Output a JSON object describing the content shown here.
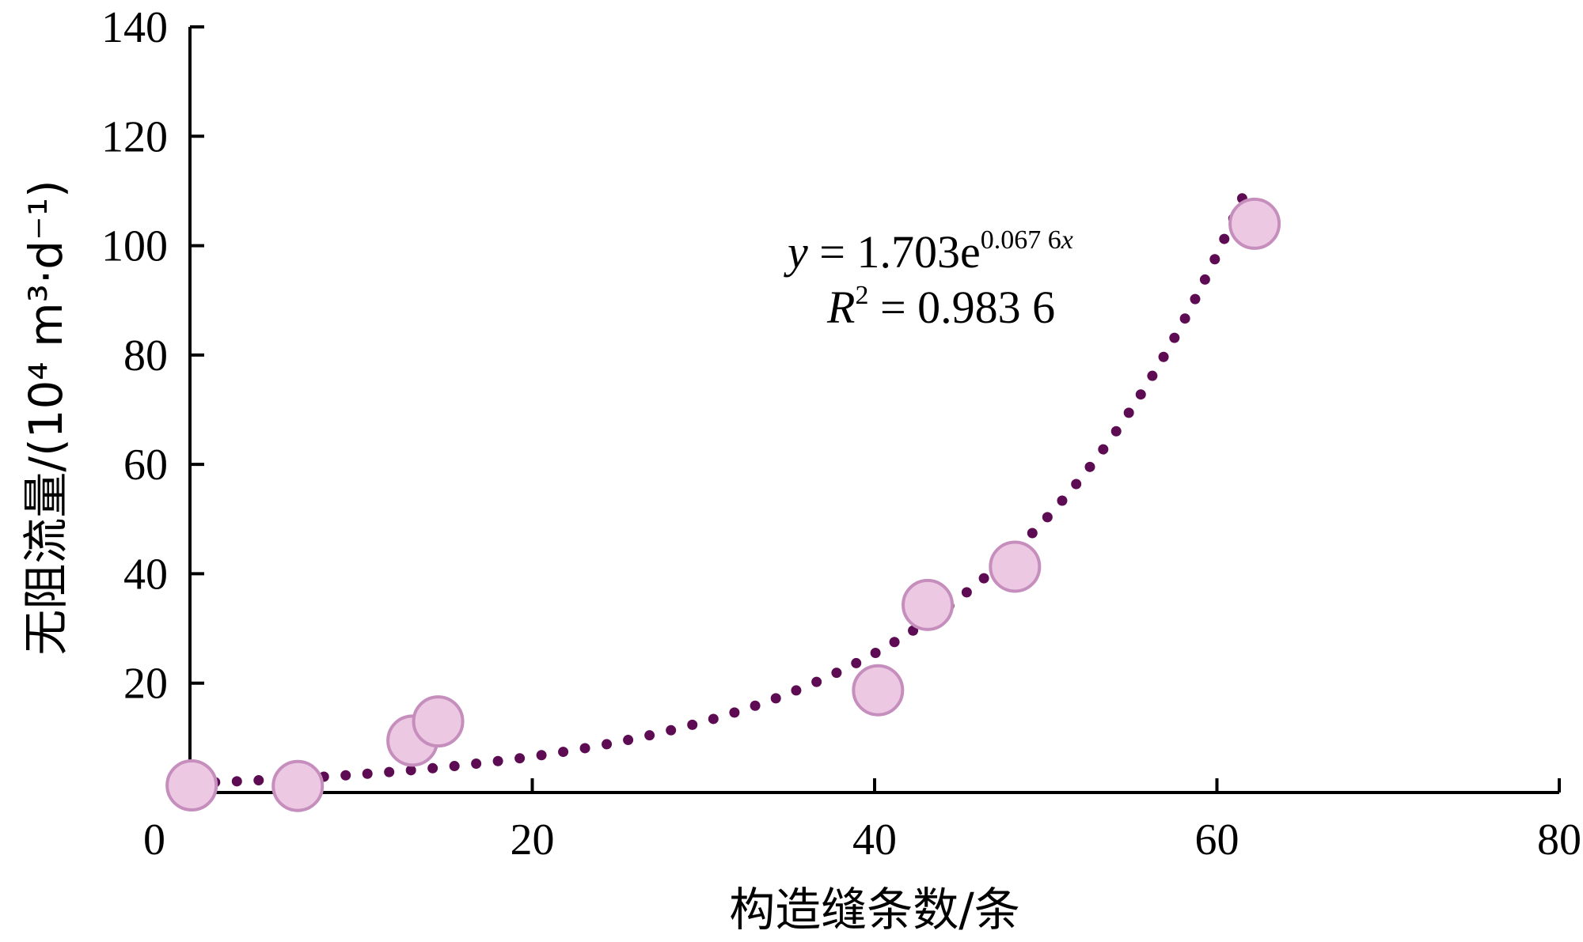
{
  "chart_data": {
    "type": "scatter",
    "title": "",
    "xlabel": "构造缝条数/条",
    "ylabel": "无阻流量/(10⁴ m³·d⁻¹)",
    "xlim": [
      0,
      80
    ],
    "ylim": [
      0,
      140
    ],
    "x_ticks": [
      "0",
      "20",
      "40",
      "60",
      "80"
    ],
    "y_ticks": [
      "20",
      "40",
      "60",
      "80",
      "100",
      "120",
      "140"
    ],
    "grid": false,
    "legend": "none",
    "series": [
      {
        "points": [
          {
            "x": 0.1,
            "y": 1.3
          },
          {
            "x": 6.3,
            "y": 1.2
          },
          {
            "x": 13,
            "y": 9.5
          },
          {
            "x": 14.5,
            "y": 13
          },
          {
            "x": 40.2,
            "y": 18.7
          },
          {
            "x": 43.1,
            "y": 34.3
          },
          {
            "x": 48.2,
            "y": 41.3
          },
          {
            "x": 62.2,
            "y": 104
          }
        ]
      }
    ],
    "trendline": {
      "type": "exponential",
      "a": 1.703,
      "b": 0.0676,
      "x_range": [
        0.2,
        61.7
      ],
      "style": "dotted"
    },
    "annotation": {
      "equation": {
        "var": "y",
        "rhs": " = 1.703e",
        "exponent": "0.067 6",
        "exponent_var": "x"
      },
      "r_squared": {
        "var": "R",
        "power": "2",
        "rhs": " = 0.983 6"
      }
    },
    "colors": {
      "marker_fill": "#ecc8e3",
      "marker_stroke": "#c58ebd",
      "trendline": "#5d0b52",
      "axis": "#000000"
    }
  }
}
